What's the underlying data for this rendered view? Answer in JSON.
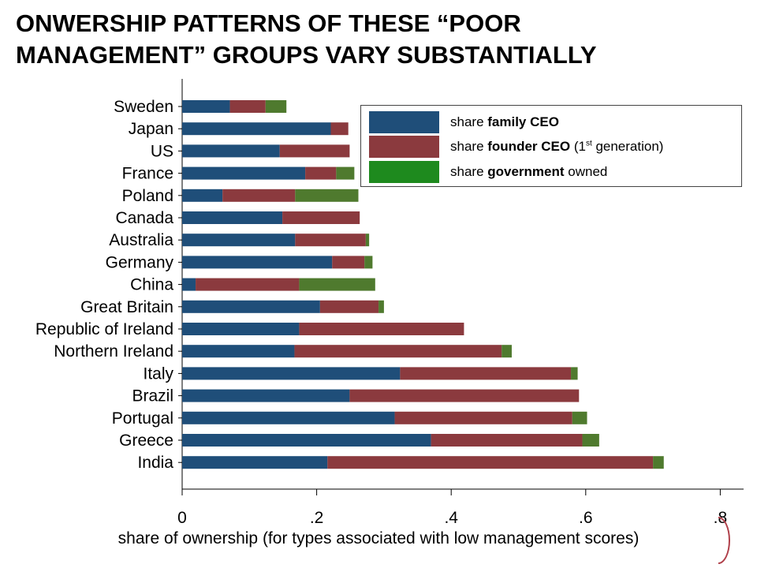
{
  "title_line1": "ONWERSHIP PATTERNS OF THESE “POOR",
  "title_line2": "MANAGEMENT” GROUPS VARY SUBSTANTIALLY",
  "legend": {
    "family": {
      "pre": "share ",
      "bold": "family CEO",
      "post": ""
    },
    "founder": {
      "pre": "share ",
      "bold": "founder CEO",
      "post": " (1",
      "sup": "st",
      "post2": " generation)"
    },
    "government": {
      "pre": "share ",
      "bold": "government",
      "post": " owned"
    }
  },
  "chart_data": {
    "type": "bar",
    "orientation": "horizontal",
    "stacked": true,
    "title": "ONWERSHIP PATTERNS OF THESE “POOR MANAGEMENT” GROUPS VARY SUBSTANTIALLY",
    "xlabel": "share of ownership (for types associated with low management scores)",
    "ylabel": "",
    "xlim": [
      0,
      0.83
    ],
    "xticks": [
      0,
      0.2,
      0.4,
      0.6,
      0.8
    ],
    "xtick_labels": [
      "0",
      ".2",
      ".4",
      ".6",
      ".8"
    ],
    "grid": false,
    "legend_position": "top-right",
    "categories": [
      "Sweden",
      "Japan",
      "US",
      "France",
      "Poland",
      "Canada",
      "Australia",
      "Germany",
      "China",
      "Great Britain",
      "Republic of Ireland",
      "Northern Ireland",
      "Italy",
      "Brazil",
      "Portugal",
      "Greece",
      "India"
    ],
    "series": [
      {
        "name": "share family CEO",
        "color": "#1f4e79",
        "values": [
          0.071,
          0.221,
          0.145,
          0.183,
          0.06,
          0.149,
          0.168,
          0.223,
          0.02,
          0.205,
          0.174,
          0.167,
          0.324,
          0.249,
          0.316,
          0.37,
          0.216
        ]
      },
      {
        "name": "share founder CEO (1st generation)",
        "color": "#8b3a3e",
        "values": [
          0.053,
          0.026,
          0.104,
          0.046,
          0.108,
          0.115,
          0.105,
          0.048,
          0.154,
          0.087,
          0.245,
          0.308,
          0.254,
          0.341,
          0.264,
          0.225,
          0.484
        ]
      },
      {
        "name": "share government owned",
        "color": "#4f7a2e",
        "values": [
          0.031,
          0.0,
          0.0,
          0.027,
          0.094,
          0.0,
          0.005,
          0.012,
          0.113,
          0.008,
          0.0,
          0.015,
          0.01,
          0.0,
          0.022,
          0.025,
          0.016
        ]
      }
    ]
  },
  "colors": {
    "family": "#1f4e79",
    "founder": "#8b3a3e",
    "government_legend": "#1e8a1e",
    "axis": "#000000"
  }
}
